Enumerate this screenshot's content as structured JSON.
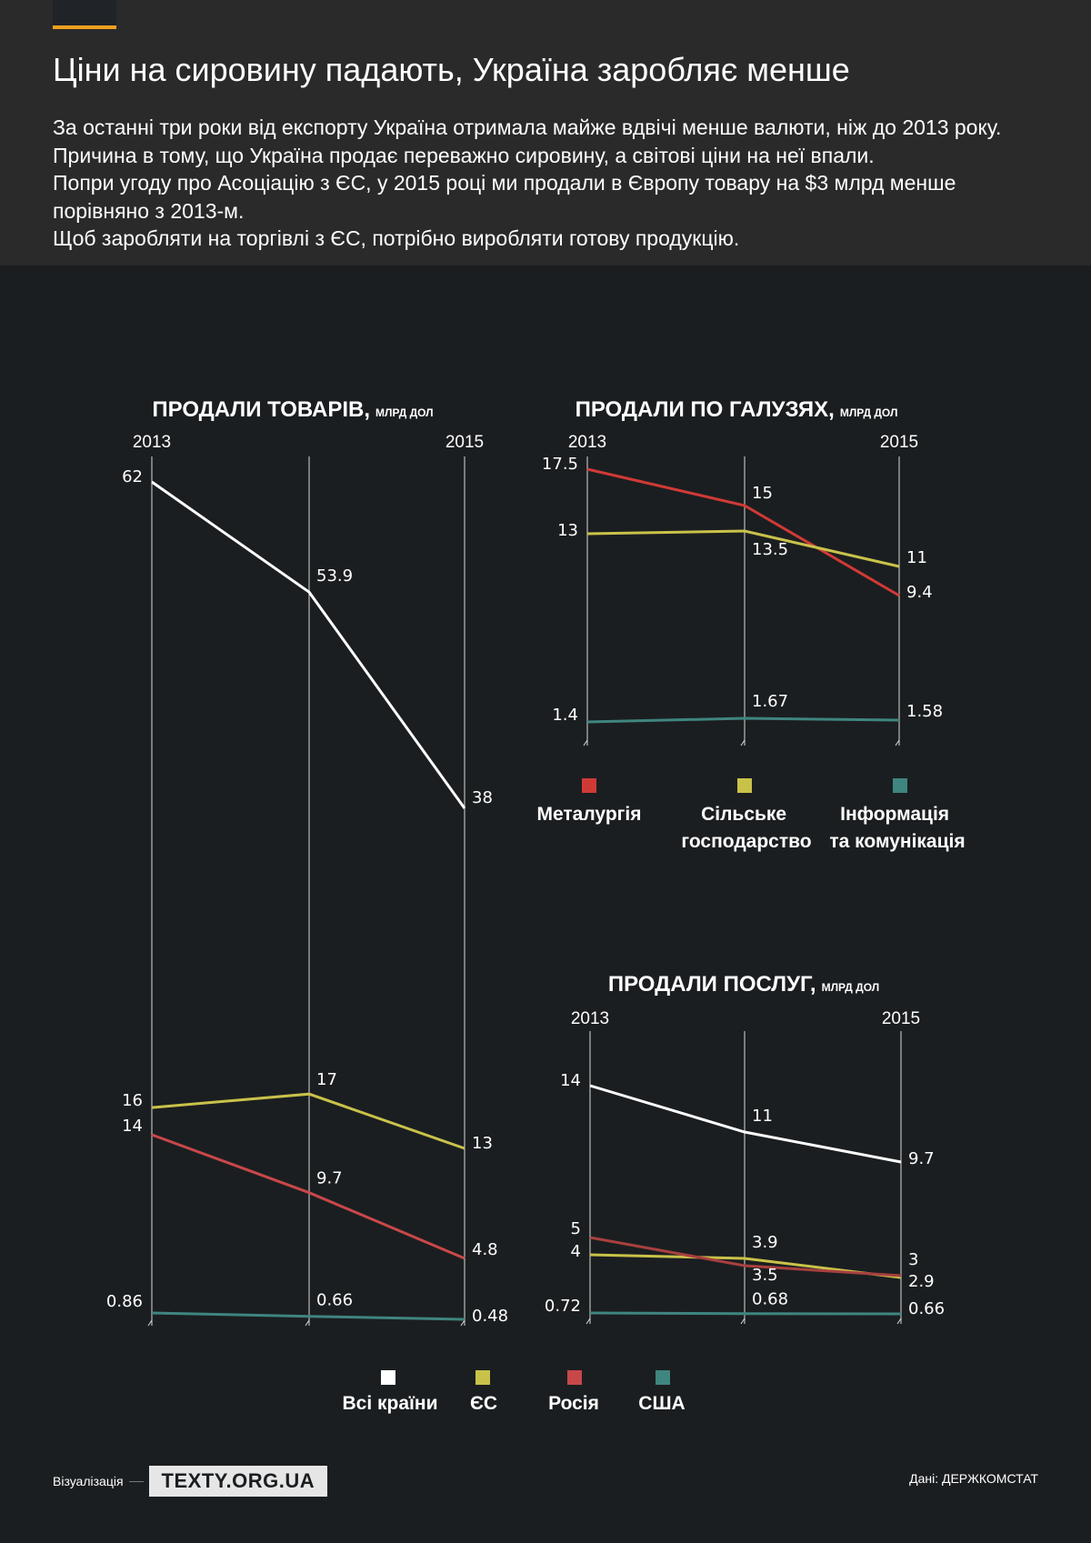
{
  "header": {
    "title": "Ціни на сировину падають, Україна заробляє менше",
    "paragraphs": [
      "За останні три роки від експорту Україна отримала майже вдвічі менше валюти, ніж до 2013 року. Причина в тому, що Україна продає переважно сировину, а світові ціни на неї впали.",
      "Попри угоду про Асоціацію з ЄС, у 2015 році ми продали в Європу товару на $3 млрд менше порівняно з 2013-м.",
      "Щоб заробляти на торгівлі з ЄС, потрібно виробляти готову продукцію."
    ]
  },
  "footer": {
    "viz_label": "Візуалізація",
    "logo_text": "TEXTY.ORG.UA",
    "source": "Дані: ДЕРЖКОМСТАТ"
  },
  "chart_data": [
    {
      "id": "goods",
      "type": "line",
      "title": "ПРОДАЛИ ТОВАРІВ,",
      "unit": "МЛРД ДОЛ",
      "x_labels": [
        "2013",
        "",
        "2015"
      ],
      "series": [
        {
          "name": "Всі країни",
          "color": "#ffffff",
          "values": [
            62,
            53.9,
            38
          ],
          "labels": [
            "62",
            "53.9",
            "38"
          ]
        },
        {
          "name": "ЄС",
          "color": "#c9c24a",
          "values": [
            16,
            17,
            13
          ],
          "labels": [
            "16",
            "17",
            "13"
          ]
        },
        {
          "name": "Росія",
          "color": "#c8484a",
          "values": [
            14,
            9.7,
            4.8
          ],
          "labels": [
            "14",
            "9.7",
            "4.8"
          ]
        },
        {
          "name": "США",
          "color": "#3f8580",
          "values": [
            0.86,
            0.66,
            0.48
          ],
          "labels": [
            "0.86",
            "0.66",
            "0.48"
          ]
        }
      ],
      "legend": [
        "Всі країни",
        "ЄС",
        "Росія",
        "США"
      ]
    },
    {
      "id": "industries",
      "type": "line",
      "title": "ПРОДАЛИ ПО ГАЛУЗЯХ,",
      "unit": "МЛРД ДОЛ",
      "x_labels": [
        "2013",
        "",
        "2015"
      ],
      "series": [
        {
          "name": "Металургія",
          "color": "#d03a36",
          "values": [
            17.5,
            15,
            9.4
          ],
          "labels": [
            "17.5",
            "15",
            "9.4"
          ]
        },
        {
          "name": "Сільське господарство",
          "color": "#c9c24a",
          "values": [
            13,
            13.5,
            11
          ],
          "labels": [
            "13",
            "13.5",
            "11"
          ]
        },
        {
          "name": "Інформація та комунікація",
          "color": "#3f8580",
          "values": [
            1.4,
            1.67,
            1.58
          ],
          "labels": [
            "1.4",
            "1.67",
            "1.58"
          ]
        }
      ],
      "legend": [
        "Металургія",
        "Сільське господарство",
        "Інформація та комунікація"
      ]
    },
    {
      "id": "services",
      "type": "line",
      "title": "ПРОДАЛИ ПОСЛУГ,",
      "unit": "МЛРД ДОЛ",
      "x_labels": [
        "2013",
        "",
        "2015"
      ],
      "series": [
        {
          "name": "Всі країни",
          "color": "#ffffff",
          "values": [
            14,
            11,
            9.7
          ],
          "labels": [
            "14",
            "11",
            "9.7"
          ]
        },
        {
          "name": "ЄС",
          "color": "#c9c24a",
          "values": [
            4,
            3.9,
            2.9
          ],
          "labels": [
            "4",
            "3.9",
            "2.9"
          ]
        },
        {
          "name": "Росія",
          "color": "#a8403f",
          "values": [
            5,
            3.5,
            3
          ],
          "labels": [
            "5",
            "3.5",
            "3"
          ]
        },
        {
          "name": "США",
          "color": "#3f8580",
          "values": [
            0.72,
            0.68,
            0.66
          ],
          "labels": [
            "0.72",
            "0.68",
            "0.66"
          ]
        }
      ]
    }
  ]
}
